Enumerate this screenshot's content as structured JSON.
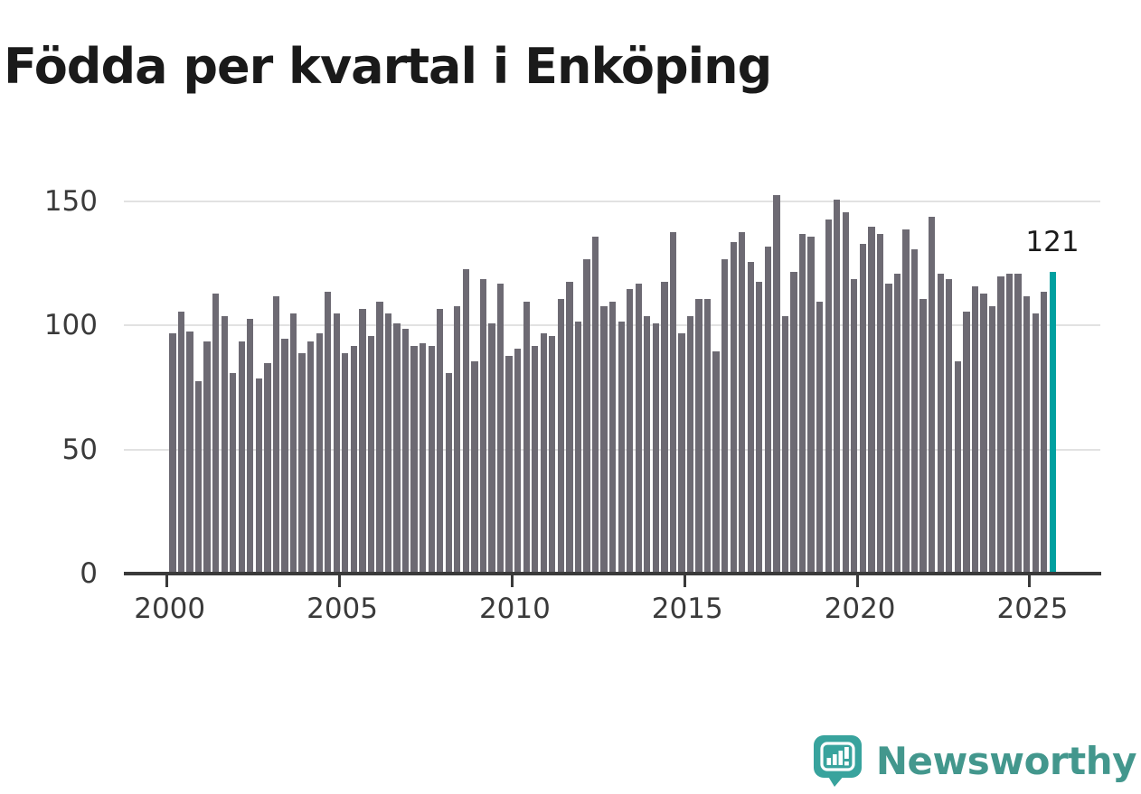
{
  "title": "Födda per kvartal i Enköping",
  "annotation": {
    "label": "121"
  },
  "logo": {
    "text": "Newsworthy",
    "icon": "newsworthy-speech-bubble-chart-icon",
    "color": "#43978d",
    "bubble_color": "#38a39d"
  },
  "chart_data": {
    "type": "bar",
    "title": "Födda per kvartal i Enköping",
    "xlabel": "",
    "ylabel": "",
    "x_start": "2000-Q1",
    "x_end": "2025-Q3",
    "ylim": [
      0,
      160
    ],
    "grid": "horizontal",
    "bar_color": "#6d6a73",
    "highlight_color": "#00a0a0",
    "highlight_last_value": 121,
    "y_ticks": [
      {
        "label": "0",
        "value": 0
      },
      {
        "label": "50",
        "value": 50
      },
      {
        "label": "100",
        "value": 100
      },
      {
        "label": "150",
        "value": 150
      }
    ],
    "x_ticks": [
      {
        "label": "2000",
        "quarter_index": 0
      },
      {
        "label": "2005",
        "quarter_index": 20
      },
      {
        "label": "2010",
        "quarter_index": 40
      },
      {
        "label": "2015",
        "quarter_index": 60
      },
      {
        "label": "2020",
        "quarter_index": 80
      },
      {
        "label": "2025",
        "quarter_index": 100
      }
    ],
    "series": [
      {
        "name": "Födda per kvartal",
        "values": [
          96,
          105,
          97,
          77,
          93,
          112,
          103,
          80,
          93,
          102,
          78,
          84,
          111,
          94,
          104,
          88,
          93,
          96,
          113,
          104,
          88,
          91,
          106,
          95,
          109,
          104,
          100,
          98,
          91,
          92,
          91,
          106,
          80,
          107,
          122,
          85,
          118,
          100,
          116,
          87,
          90,
          109,
          91,
          96,
          95,
          110,
          117,
          101,
          126,
          135,
          107,
          109,
          101,
          114,
          116,
          103,
          100,
          117,
          137,
          96,
          103,
          110,
          110,
          89,
          126,
          133,
          137,
          125,
          117,
          131,
          152,
          103,
          121,
          136,
          135,
          109,
          142,
          150,
          145,
          118,
          132,
          139,
          136,
          116,
          120,
          138,
          130,
          110,
          143,
          120,
          118,
          85,
          105,
          115,
          112,
          107,
          119,
          120,
          120,
          111,
          104,
          113,
          121
        ]
      }
    ]
  }
}
